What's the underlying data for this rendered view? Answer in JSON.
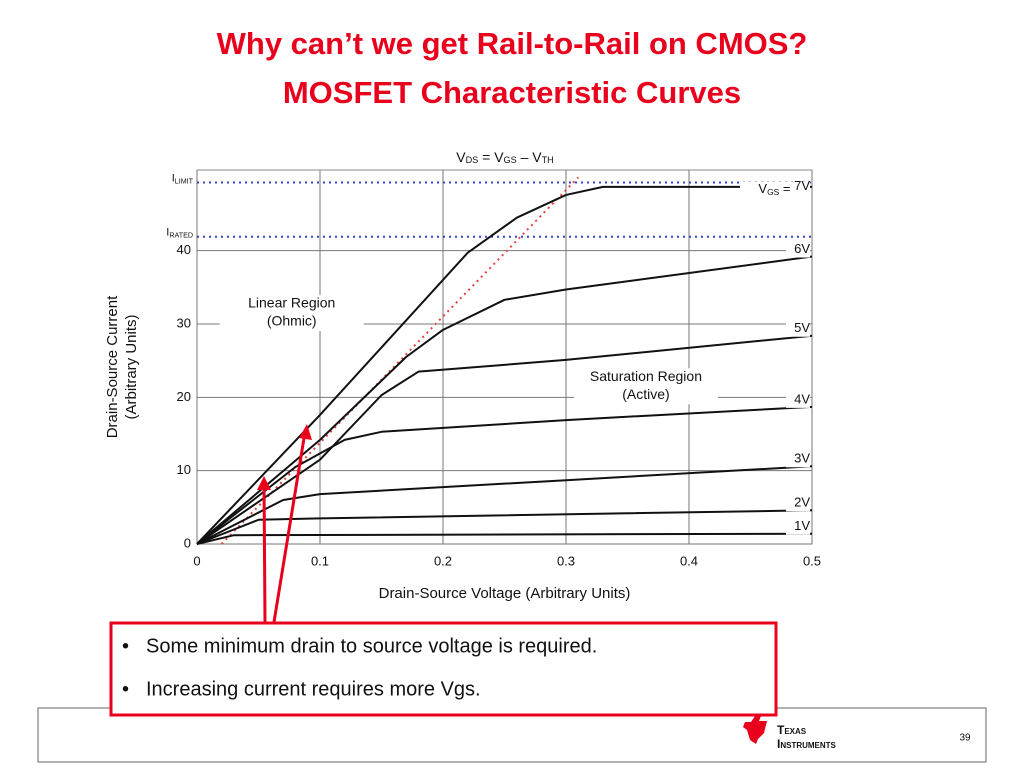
{
  "title_lines": [
    "Why can’t we get Rail-to-Rail on CMOS?",
    "MOSFET Characteristic Curves"
  ],
  "chart_data": {
    "type": "line",
    "xlabel": "Drain-Source Voltage (Arbitrary Units)",
    "ylabel_lines": [
      "Drain-Source Current",
      "(Arbitrary Units)"
    ],
    "top_label": {
      "parts": [
        "V",
        "DS",
        " = V",
        "GS",
        " – V",
        "TH"
      ]
    },
    "xlim": [
      0,
      0.5
    ],
    "ylim": [
      0,
      51
    ],
    "xticks": [
      0,
      0.1,
      0.2,
      0.3,
      0.4,
      0.5
    ],
    "yticks": [
      0,
      10,
      20,
      30,
      40
    ],
    "grid": true,
    "hlines": [
      {
        "parts": [
          "I",
          "LIMIT"
        ],
        "value": 49.3,
        "color": "#3344cc"
      },
      {
        "parts": [
          "I",
          "RATED"
        ],
        "value": 41.9,
        "color": "#3344cc"
      }
    ],
    "regions": [
      {
        "lines": [
          "Linear Region",
          "(Ohmic)"
        ],
        "x": 0.077,
        "y": 31.5
      },
      {
        "lines": [
          "Saturation Region",
          "(Active)"
        ],
        "x": 0.365,
        "y": 21.5
      }
    ],
    "first_label_prefix": [
      "V",
      "GS",
      " = "
    ],
    "series": [
      {
        "name": "7V",
        "color": "#111",
        "x": [
          0,
          0.1,
          0.22,
          0.26,
          0.3,
          0.33,
          0.5
        ],
        "values": [
          0,
          17.6,
          39.7,
          44.5,
          47.6,
          48.7,
          48.7
        ]
      },
      {
        "name": "6V",
        "color": "#111",
        "x": [
          0,
          0.1,
          0.17,
          0.2,
          0.25,
          0.3,
          0.5
        ],
        "values": [
          0,
          14.2,
          25.5,
          29.2,
          33.3,
          34.7,
          39.2
        ]
      },
      {
        "name": "5V",
        "color": "#111",
        "x": [
          0,
          0.1,
          0.15,
          0.18,
          0.3,
          0.5
        ],
        "values": [
          0,
          11.5,
          20.3,
          23.5,
          25.1,
          28.4
        ]
      },
      {
        "name": "4V",
        "color": "#111",
        "x": [
          0,
          0.08,
          0.12,
          0.15,
          0.3,
          0.5
        ],
        "values": [
          0,
          10.5,
          14.2,
          15.3,
          16.9,
          18.7
        ]
      },
      {
        "name": "3V",
        "color": "#111",
        "x": [
          0,
          0.07,
          0.1,
          0.3,
          0.5
        ],
        "values": [
          0,
          6,
          6.8,
          8.7,
          10.6
        ]
      },
      {
        "name": "2V",
        "color": "#111",
        "x": [
          0,
          0.05,
          0.1,
          0.5
        ],
        "values": [
          0,
          3.3,
          3.5,
          4.6
        ]
      },
      {
        "name": "1V",
        "color": "#111",
        "x": [
          0,
          0.03,
          0.5
        ],
        "values": [
          0,
          1.2,
          1.4
        ]
      }
    ],
    "boundary": {
      "x": [
        0.02,
        0.31
      ],
      "values": [
        0,
        50
      ],
      "color": "#e84040"
    }
  },
  "bullets": [
    "Some minimum drain to source voltage is required.",
    "Increasing current requires more Vgs."
  ],
  "footer": {
    "logo_lines": [
      "Texas",
      "Instruments"
    ],
    "page": "39"
  }
}
